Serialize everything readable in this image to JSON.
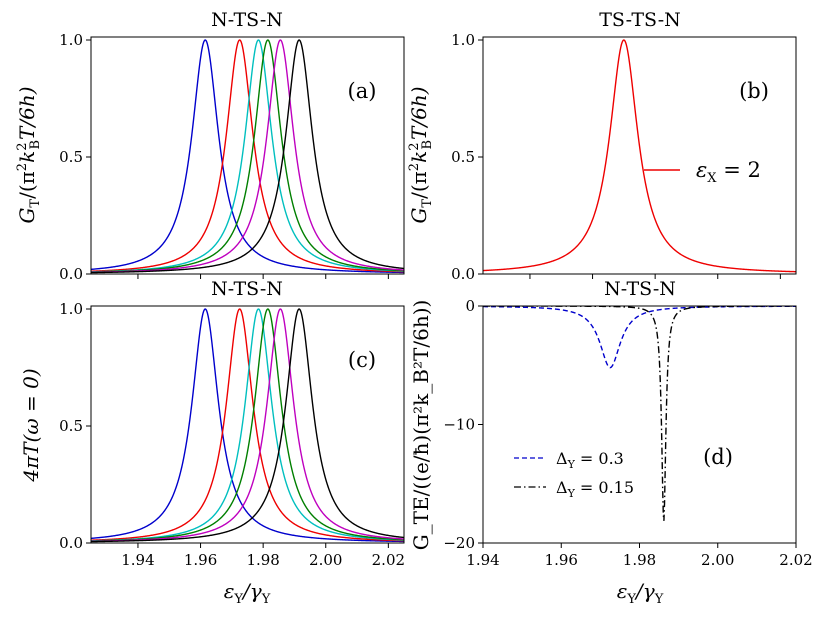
{
  "chart_data": [
    {
      "id": "a",
      "type": "line",
      "title": "N-TS-N",
      "panel_label": "(a)",
      "xlabel": "",
      "ylabel": "G_T/(π²k_B²T/6h)",
      "ylabel_parts": {
        "base": "G",
        "sub": "T",
        "rest1": "/(π",
        "sup1": "2",
        "k": "k",
        "ksup": "2",
        "ksub": "B",
        "rest2": "T/6h)"
      },
      "xlim": [
        1.925,
        2.025
      ],
      "ylim": [
        0,
        1.0
      ],
      "xticks": [],
      "yticks": [
        0.0,
        0.5,
        1.0
      ],
      "ytick_labels": [
        "0.0",
        "0.5",
        "1.0"
      ],
      "curve": "lorentzian",
      "width": 0.0052,
      "series": [
        {
          "name": "blue",
          "center": 1.9615,
          "color": "#0000cc"
        },
        {
          "name": "red",
          "center": 1.9725,
          "color": "#ee0000"
        },
        {
          "name": "cyan",
          "center": 1.9785,
          "color": "#00bfbf"
        },
        {
          "name": "green",
          "center": 1.9815,
          "color": "#007f00"
        },
        {
          "name": "magenta",
          "center": 1.9855,
          "color": "#bf00bf"
        },
        {
          "name": "black",
          "center": 1.9915,
          "color": "#000000"
        }
      ]
    },
    {
      "id": "b",
      "type": "line",
      "title": "TS-TS-N",
      "panel_label": "(b)",
      "xlabel": "",
      "ylabel": "G_T/(π²k_B²T/6h)",
      "ylabel_parts": {
        "base": "G",
        "sub": "T",
        "rest1": "/(π",
        "sup1": "2",
        "k": "k",
        "ksup": "2",
        "ksub": "B",
        "rest2": "T/6h)"
      },
      "xlim": [
        1.925,
        2.025
      ],
      "ylim": [
        0,
        1.0
      ],
      "yticks": [
        0.0,
        0.5,
        1.0
      ],
      "ytick_labels": [
        "0.0",
        "0.5",
        "1.0"
      ],
      "curve": "lorentzian",
      "width": 0.0055,
      "legend": {
        "placement": "center-right",
        "entries": [
          {
            "label_prefix": "ε",
            "label_sub": "X",
            "label_suffix": " = 2",
            "color": "#ee0000"
          }
        ]
      },
      "series": [
        {
          "name": "ε_X = 2",
          "center": 1.97,
          "color": "#ee0000"
        }
      ]
    },
    {
      "id": "c",
      "type": "line",
      "title": "N-TS-N",
      "panel_label": "(c)",
      "xlabel": "ε_Y/γ_Y",
      "xlabel_parts": {
        "a": "ε",
        "asub": "Y",
        "b": "/γ",
        "bsub": "Y"
      },
      "ylabel": "4πT(ω = 0)",
      "xlim": [
        1.925,
        2.025
      ],
      "ylim": [
        0,
        1.0
      ],
      "xticks": [
        1.94,
        1.96,
        1.98,
        2.0,
        2.02
      ],
      "xtick_labels": [
        "1.94",
        "1.96",
        "1.98",
        "2.00",
        "2.02"
      ],
      "yticks": [
        0.0,
        0.5,
        1.0
      ],
      "ytick_labels": [
        "0.0",
        "0.5",
        "1.0"
      ],
      "curve": "lorentzian",
      "width": 0.0052,
      "series": [
        {
          "name": "blue",
          "center": 1.9615,
          "color": "#0000cc"
        },
        {
          "name": "red",
          "center": 1.9725,
          "color": "#ee0000"
        },
        {
          "name": "cyan",
          "center": 1.9785,
          "color": "#00bfbf"
        },
        {
          "name": "green",
          "center": 1.9815,
          "color": "#007f00"
        },
        {
          "name": "magenta",
          "center": 1.9855,
          "color": "#bf00bf"
        },
        {
          "name": "black",
          "center": 1.9915,
          "color": "#000000"
        }
      ]
    },
    {
      "id": "d",
      "type": "line",
      "title": "N-TS-N",
      "panel_label": "(d)",
      "xlabel": "ε_Y/γ_Y",
      "xlabel_parts": {
        "a": "ε",
        "asub": "Y",
        "b": "/γ",
        "bsub": "Y"
      },
      "ylabel": "G_TE/((e/ħ)(π²k_B²T/6h))",
      "xlim": [
        1.94,
        2.02
      ],
      "ylim": [
        -20,
        0
      ],
      "xticks": [
        1.94,
        1.96,
        1.98,
        2.0,
        2.02
      ],
      "xtick_labels": [
        "1.94",
        "1.96",
        "1.98",
        "2.00",
        "2.02"
      ],
      "yticks": [
        0,
        -10,
        -20
      ],
      "ytick_labels": [
        "0",
        "−10",
        "−20"
      ],
      "legend": {
        "placement": "bottom-left",
        "entries": [
          {
            "label_prefix": "Δ",
            "label_sub": "Y",
            "label_suffix": " = 0.3",
            "style": "dashed",
            "color": "#0000cc"
          },
          {
            "label_prefix": "Δ",
            "label_sub": "Y",
            "label_suffix": " = 0.15",
            "style": "dashdot",
            "color": "#000000"
          }
        ]
      },
      "series": [
        {
          "name": "Δ_Y = 0.3",
          "center": 1.9725,
          "width": 0.0032,
          "depth": -5.2,
          "color": "#0000cc",
          "style": "dashed"
        },
        {
          "name": "Δ_Y = 0.15",
          "center": 1.9862,
          "width": 0.00065,
          "depth": -18.2,
          "color": "#000000",
          "style": "dashdot"
        }
      ]
    }
  ]
}
